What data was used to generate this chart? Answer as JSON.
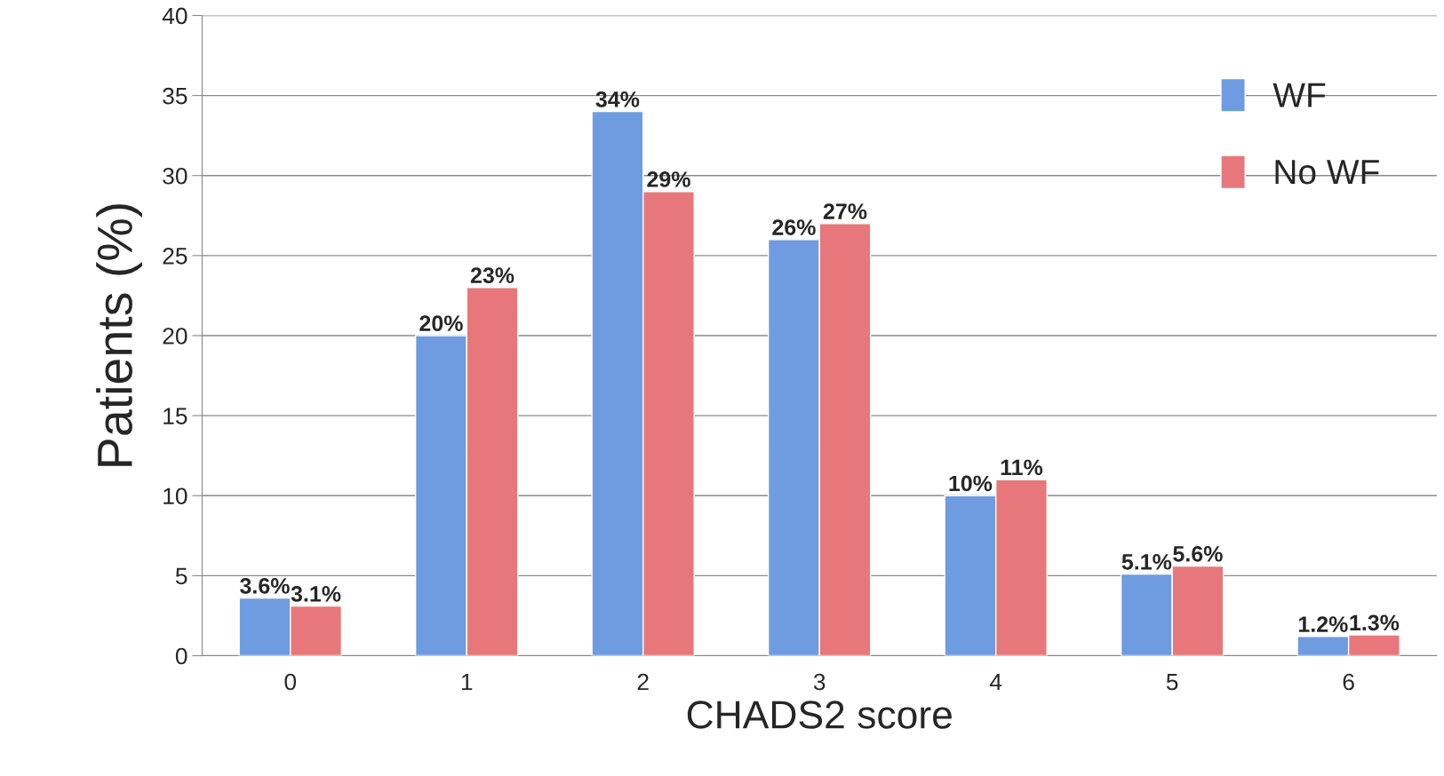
{
  "chart_data": {
    "type": "bar",
    "xlabel": "CHADS2 score",
    "ylabel": "Patients (%)",
    "categories": [
      "0",
      "1",
      "2",
      "3",
      "4",
      "5",
      "6"
    ],
    "series": [
      {
        "name": "WF",
        "color": "#6f9be0",
        "values": [
          3.6,
          20,
          34,
          26,
          10,
          5.1,
          1.2
        ],
        "value_labels": [
          "3.6%",
          "20%",
          "34%",
          "26%",
          "10%",
          "5.1%",
          "1.2%"
        ]
      },
      {
        "name": "No WF",
        "color": "#e8777b",
        "values": [
          3.1,
          23,
          29,
          27,
          11,
          5.6,
          1.3
        ],
        "value_labels": [
          "3.1%",
          "23%",
          "29%",
          "27%",
          "11%",
          "5.6%",
          "1.3%"
        ]
      }
    ],
    "ylim": [
      0,
      40
    ],
    "yticks": [
      0,
      5,
      10,
      15,
      20,
      25,
      30,
      35,
      40
    ],
    "grid": "y",
    "legend": "top right"
  }
}
